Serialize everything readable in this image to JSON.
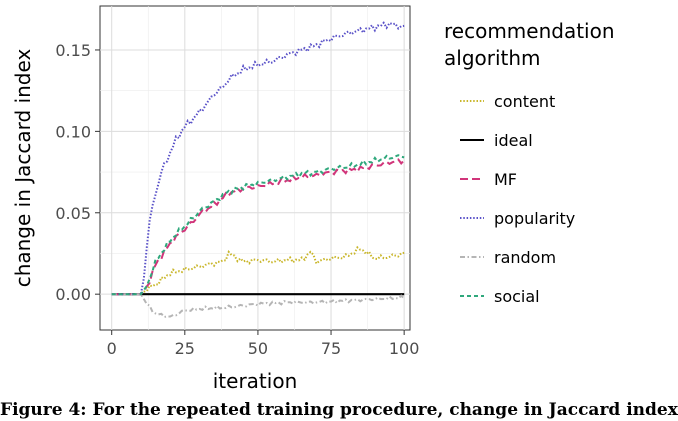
{
  "caption": "Figure 4: For the repeated training procedure, change in Jaccard index",
  "chart_data": {
    "type": "line",
    "xlabel": "iteration",
    "ylabel": "change in Jaccard index",
    "xlim": [
      -4,
      102
    ],
    "ylim": [
      -0.022,
      0.177
    ],
    "xticks": [
      0,
      25,
      50,
      75,
      100
    ],
    "yticks": [
      0.0,
      0.05,
      0.1,
      0.15
    ],
    "xtick_labels": [
      "0",
      "25",
      "50",
      "75",
      "100"
    ],
    "ytick_labels": [
      "0.00",
      "0.05",
      "0.10",
      "0.15"
    ],
    "grid": true,
    "legend": {
      "title_lines": [
        "recommendation",
        "algorithm"
      ],
      "placement": "right"
    },
    "series": [
      {
        "name": "content",
        "color": "#c9b62a",
        "dash": "dotted",
        "x": [
          0,
          10,
          12,
          15,
          18,
          20,
          25,
          30,
          35,
          38,
          40,
          45,
          50,
          55,
          60,
          65,
          68,
          70,
          75,
          80,
          85,
          90,
          95,
          100
        ],
        "y": [
          0,
          0,
          0.003,
          0.006,
          0.01,
          0.013,
          0.015,
          0.017,
          0.019,
          0.02,
          0.025,
          0.02,
          0.021,
          0.02,
          0.021,
          0.021,
          0.026,
          0.02,
          0.022,
          0.023,
          0.028,
          0.022,
          0.023,
          0.025
        ]
      },
      {
        "name": "ideal",
        "color": "#000000",
        "dash": "solid",
        "x": [
          0,
          100
        ],
        "y": [
          0,
          0
        ]
      },
      {
        "name": "MF",
        "color": "#d1357a",
        "dash": "longdash",
        "x": [
          0,
          10,
          12,
          15,
          18,
          20,
          22,
          25,
          28,
          30,
          35,
          40,
          45,
          50,
          55,
          60,
          65,
          70,
          75,
          80,
          85,
          90,
          95,
          100
        ],
        "y": [
          0,
          0,
          0.004,
          0.018,
          0.026,
          0.031,
          0.035,
          0.04,
          0.045,
          0.049,
          0.055,
          0.062,
          0.065,
          0.066,
          0.068,
          0.07,
          0.072,
          0.073,
          0.075,
          0.076,
          0.077,
          0.079,
          0.081,
          0.082
        ]
      },
      {
        "name": "popularity",
        "color": "#5a52c8",
        "dash": "dotted",
        "x": [
          0,
          10,
          11,
          12,
          13,
          15,
          17,
          20,
          22,
          25,
          28,
          30,
          33,
          35,
          38,
          40,
          45,
          50,
          55,
          60,
          65,
          70,
          75,
          80,
          85,
          90,
          95,
          100
        ],
        "y": [
          0,
          0,
          0.01,
          0.03,
          0.045,
          0.062,
          0.075,
          0.087,
          0.095,
          0.103,
          0.108,
          0.112,
          0.118,
          0.123,
          0.127,
          0.132,
          0.138,
          0.141,
          0.143,
          0.147,
          0.15,
          0.153,
          0.157,
          0.16,
          0.162,
          0.164,
          0.166,
          0.164
        ]
      },
      {
        "name": "random",
        "color": "#b5b5b5",
        "dash": "dashdot",
        "x": [
          0,
          10,
          12,
          15,
          20,
          25,
          30,
          40,
          50,
          60,
          70,
          80,
          90,
          100
        ],
        "y": [
          0,
          0,
          -0.006,
          -0.012,
          -0.014,
          -0.01,
          -0.009,
          -0.008,
          -0.006,
          -0.005,
          -0.005,
          -0.004,
          -0.003,
          -0.002
        ]
      },
      {
        "name": "social",
        "color": "#2fa87c",
        "dash": "dashed",
        "x": [
          0,
          10,
          12,
          15,
          18,
          20,
          22,
          25,
          28,
          30,
          35,
          40,
          45,
          50,
          55,
          60,
          65,
          70,
          75,
          80,
          85,
          90,
          95,
          100
        ],
        "y": [
          0,
          0,
          0.005,
          0.02,
          0.028,
          0.033,
          0.037,
          0.042,
          0.047,
          0.051,
          0.057,
          0.063,
          0.066,
          0.068,
          0.07,
          0.072,
          0.074,
          0.075,
          0.077,
          0.078,
          0.08,
          0.082,
          0.084,
          0.085
        ]
      }
    ]
  }
}
